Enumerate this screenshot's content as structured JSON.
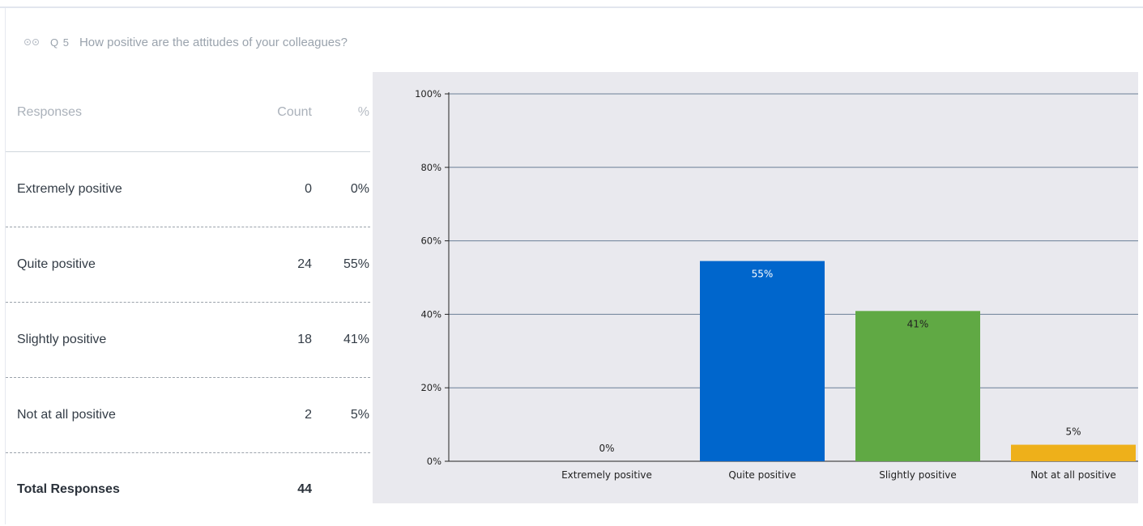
{
  "question": {
    "number": "Q 5",
    "text": "How positive are the attitudes of your colleagues?",
    "icon": "eye-icon"
  },
  "table": {
    "headers": {
      "responses": "Responses",
      "count": "Count",
      "percent": "%"
    },
    "rows": [
      {
        "label": "Extremely positive",
        "count": "0",
        "percent": "0%"
      },
      {
        "label": "Quite positive",
        "count": "24",
        "percent": "55%"
      },
      {
        "label": "Slightly positive",
        "count": "18",
        "percent": "41%"
      },
      {
        "label": "Not at all positive",
        "count": "2",
        "percent": "5%"
      }
    ],
    "total": {
      "label": "Total Responses",
      "count": "44"
    }
  },
  "chart_data": {
    "type": "bar",
    "title": "",
    "xlabel": "",
    "ylabel": "",
    "categories": [
      "Extremely positive",
      "Quite positive",
      "Slightly positive",
      "Not at all positive"
    ],
    "values": [
      0,
      54.5,
      40.9,
      4.5
    ],
    "data_labels": [
      "0%",
      "55%",
      "41%",
      "5%"
    ],
    "colors": [
      "#0066cc",
      "#0066cc",
      "#60a944",
      "#eeb01a"
    ],
    "label_colors": [
      "#222222",
      "#ffffff",
      "#222222",
      "#222222"
    ],
    "ylim": [
      0,
      100
    ],
    "yticks": [
      0,
      20,
      40,
      60,
      80,
      100
    ],
    "ytick_labels": [
      "0%",
      "20%",
      "40%",
      "60%",
      "80%",
      "100%"
    ],
    "grid": true,
    "legend": "none",
    "background": "#e9e9ee",
    "gridline_color": "#6b7f97"
  }
}
